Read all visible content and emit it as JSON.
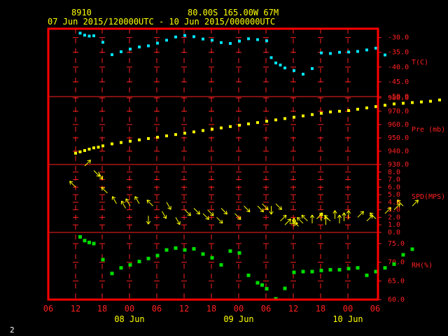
{
  "header": {
    "station": "8910",
    "location": "80.00S  165.00W    67M",
    "period": "07 Jun 2015/120000UTC - 10 Jun 2015/000000UTC"
  },
  "page_number": "2",
  "colors": {
    "background": "#000000",
    "frame": "#ff0000",
    "grid": "#ff2020",
    "header_text": "#ffff00",
    "temperature": "#00e5ff",
    "pressure": "#ffff00",
    "wind": "#ffff00",
    "humidity": "#00dd00"
  },
  "chart_data": [
    {
      "type": "scatter",
      "panel": "temperature",
      "ylabel": "T(C)",
      "ylim": [
        -50,
        -27
      ],
      "ticks": [
        -30,
        -35,
        -40,
        -45,
        -50
      ],
      "tick_labels": [
        "-30.0",
        "-35.0",
        "-40.0",
        "-45.0",
        "-50.0"
      ],
      "x_hours": [
        1,
        2,
        3,
        4,
        6,
        8,
        10,
        12,
        14,
        16,
        18,
        20,
        22,
        24,
        26,
        28,
        30,
        32,
        34,
        36,
        38,
        40,
        42,
        43,
        44,
        45,
        46,
        48,
        50,
        52,
        54,
        56,
        58,
        60,
        62,
        64,
        66,
        68
      ],
      "values": [
        -28.5,
        -29.2,
        -29.5,
        -29.4,
        -31.6,
        -35.8,
        -34.8,
        -33.9,
        -33.2,
        -32.8,
        -31.9,
        -30.9,
        -29.8,
        -29.3,
        -29.7,
        -30.5,
        -30.9,
        -31.7,
        -32.0,
        -31.2,
        -30.4,
        -30.7,
        -31.1,
        -36.8,
        -38.6,
        -39.3,
        -40.3,
        -41.2,
        -42.4,
        -40.5,
        -35.2,
        -35.4,
        -35.0,
        -34.9,
        -34.7,
        -34.2,
        -33.6,
        -35.9
      ]
    },
    {
      "type": "scatter",
      "panel": "pressure",
      "ylabel": "Pre (mb)",
      "ylim": [
        930,
        981
      ],
      "ticks": [
        980,
        970,
        960,
        950,
        940,
        930
      ],
      "tick_labels": [
        "980.0",
        "970.0",
        "960.0",
        "950.0",
        "940.0",
        "930.0"
      ],
      "x_hours": [
        0,
        1,
        2,
        3,
        4,
        5,
        6,
        8,
        10,
        12,
        14,
        16,
        18,
        20,
        22,
        24,
        26,
        28,
        30,
        32,
        34,
        36,
        38,
        40,
        42,
        44,
        46,
        48,
        50,
        52,
        54,
        56,
        58,
        60,
        62,
        64,
        66,
        68,
        70,
        72,
        74,
        76,
        78,
        80
      ],
      "values": [
        938.5,
        939.5,
        940.5,
        941.5,
        942.5,
        943.0,
        944.0,
        945.5,
        946.5,
        947.5,
        948.5,
        949.5,
        950.5,
        951.5,
        952.5,
        953.5,
        954.5,
        955.5,
        956.5,
        957.5,
        958.5,
        959.5,
        960.5,
        961.5,
        962.5,
        963.5,
        964.5,
        965.5,
        966.5,
        967.5,
        968.5,
        969.5,
        970.0,
        970.5,
        971.5,
        972.5,
        973.5,
        974.5,
        975.5,
        976.0,
        976.5,
        977.0,
        977.5,
        978.5
      ]
    },
    {
      "type": "scatter",
      "panel": "wind",
      "ylabel": "SPD(MPS)",
      "ylim": [
        0,
        9
      ],
      "ticks": [
        0,
        1,
        2,
        3,
        4,
        5,
        6,
        7,
        8,
        9
      ],
      "tick_labels": [
        "0.0",
        "1.0",
        "2.0",
        "3.0",
        "4.0",
        "5.0",
        "6.0",
        "7.0",
        "8.0",
        ""
      ],
      "x_hours": [
        0,
        2,
        4,
        5,
        7,
        9,
        11,
        12,
        14,
        16,
        17,
        19,
        20,
        22,
        24,
        26,
        28,
        29,
        31,
        32,
        35,
        37,
        40,
        41,
        43,
        44,
        45,
        46,
        47,
        48,
        49,
        50,
        51,
        52,
        53,
        54,
        55,
        56,
        57,
        58,
        59,
        60,
        62,
        64,
        66,
        68,
        70,
        72,
        74
      ],
      "values": [
        6.0,
        8.8,
        8.2,
        8.0,
        5.2,
        3.8,
        3.2,
        3.5,
        3.8,
        2.2,
        3.5,
        2.8,
        4.0,
        2.0,
        3.0,
        3.2,
        2.5,
        3.0,
        2.0,
        3.2,
        2.5,
        3.5,
        3.5,
        3.8,
        3.5,
        3.8,
        1.5,
        1.0,
        1.2,
        0.8,
        0.8,
        1.2,
        1.5,
        1.2,
        1.8,
        1.5,
        1.0,
        1.5,
        1.8,
        1.2,
        1.5,
        1.8,
        2.0,
        1.5,
        1.8,
        2.5,
        3.0,
        3.5,
        3.5
      ],
      "directions_deg": [
        135,
        45,
        315,
        300,
        135,
        120,
        120,
        120,
        120,
        270,
        135,
        300,
        300,
        300,
        315,
        315,
        315,
        315,
        315,
        315,
        315,
        315,
        315,
        315,
        270,
        315,
        45,
        45,
        0,
        90,
        135,
        135,
        135,
        90,
        45,
        90,
        90,
        135,
        90,
        90,
        90,
        90,
        45,
        45,
        135,
        45,
        45,
        135,
        45
      ]
    },
    {
      "type": "scatter",
      "panel": "humidity",
      "ylabel": "RH(%)",
      "ylim": [
        60,
        78
      ],
      "ticks": [
        75,
        70,
        65,
        60
      ],
      "tick_labels": [
        "75.0",
        "70.0",
        "65.0",
        "60.0"
      ],
      "x_hours": [
        1,
        2,
        3,
        4,
        6,
        8,
        10,
        12,
        14,
        16,
        18,
        20,
        22,
        24,
        26,
        28,
        30,
        32,
        34,
        36,
        38,
        40,
        41,
        42,
        44,
        46,
        48,
        50,
        52,
        54,
        56,
        58,
        60,
        62,
        64,
        66,
        68,
        70,
        72,
        74
      ],
      "values": [
        76.8,
        75.8,
        75.3,
        75.0,
        70.7,
        67.0,
        68.5,
        69.3,
        70.2,
        71.0,
        71.8,
        73.3,
        73.8,
        73.3,
        73.6,
        72.2,
        71.2,
        69.3,
        73.0,
        72.5,
        66.5,
        64.5,
        63.9,
        62.9,
        60.2,
        63.0,
        67.3,
        67.5,
        67.5,
        67.8,
        68.0,
        68.0,
        68.3,
        68.5,
        66.5,
        67.5,
        68.5,
        69.5,
        72.0,
        73.5
      ]
    }
  ],
  "x_axis": {
    "tick_labels": [
      "06",
      "12",
      "18",
      "00",
      "06",
      "12",
      "18",
      "00",
      "06",
      "12",
      "18",
      "00",
      "06"
    ],
    "date_labels": [
      "08 Jun",
      "09 Jun",
      "10 Jun"
    ]
  }
}
